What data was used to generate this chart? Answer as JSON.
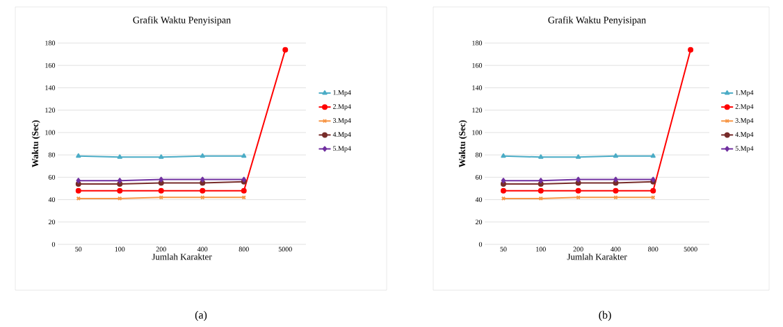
{
  "chart_data": [
    {
      "type": "line",
      "title": "Grafik Waktu Penyisipan",
      "xlabel": "Jumlah Karakter",
      "ylabel": "Waktu (Sec)",
      "categories": [
        "50",
        "100",
        "200",
        "400",
        "800",
        "5000"
      ],
      "series": [
        {
          "name": "1.Mp4",
          "color": "#4bacc6",
          "marker": "triangle",
          "values": [
            79,
            78,
            78,
            79,
            79,
            null
          ]
        },
        {
          "name": "2.Mp4",
          "color": "#ff0000",
          "marker": "circle",
          "values": [
            48,
            48,
            48,
            48,
            48,
            174
          ]
        },
        {
          "name": "3.Mp4",
          "color": "#f79646",
          "marker": "cross",
          "values": [
            41,
            41,
            42,
            42,
            42,
            null
          ]
        },
        {
          "name": "4.Mp4",
          "color": "#772c2a",
          "marker": "circle",
          "values": [
            54,
            54,
            55,
            55,
            56,
            null
          ]
        },
        {
          "name": "5.Mp4",
          "color": "#7030a0",
          "marker": "diamond",
          "values": [
            57,
            57,
            58,
            58,
            58,
            null
          ]
        }
      ],
      "ylim": [
        0,
        180
      ],
      "yticks": [
        0,
        20,
        40,
        60,
        80,
        100,
        120,
        140,
        160,
        180
      ],
      "grid": "y",
      "legend": "right",
      "annotations": [
        "(a)"
      ]
    },
    {
      "type": "line",
      "title": "Grafik Waktu Penyisipan",
      "xlabel": "Jumlah Karakter",
      "ylabel": "Waktu (Sec)",
      "categories": [
        "50",
        "100",
        "200",
        "400",
        "800",
        "5000"
      ],
      "series": [
        {
          "name": "1.Mp4",
          "color": "#4bacc6",
          "marker": "triangle",
          "values": [
            79,
            78,
            78,
            79,
            79,
            null
          ]
        },
        {
          "name": "2.Mp4",
          "color": "#ff0000",
          "marker": "circle",
          "values": [
            48,
            48,
            48,
            48,
            48,
            174
          ]
        },
        {
          "name": "3.Mp4",
          "color": "#f79646",
          "marker": "cross",
          "values": [
            41,
            41,
            42,
            42,
            42,
            null
          ]
        },
        {
          "name": "4.Mp4",
          "color": "#772c2a",
          "marker": "circle",
          "values": [
            54,
            54,
            55,
            55,
            56,
            null
          ]
        },
        {
          "name": "5.Mp4",
          "color": "#7030a0",
          "marker": "diamond",
          "values": [
            57,
            57,
            58,
            58,
            58,
            null
          ]
        }
      ],
      "ylim": [
        0,
        180
      ],
      "yticks": [
        0,
        20,
        40,
        60,
        80,
        100,
        120,
        140,
        160,
        180
      ],
      "grid": "y",
      "legend": "right",
      "annotations": [
        "(b)"
      ]
    }
  ]
}
